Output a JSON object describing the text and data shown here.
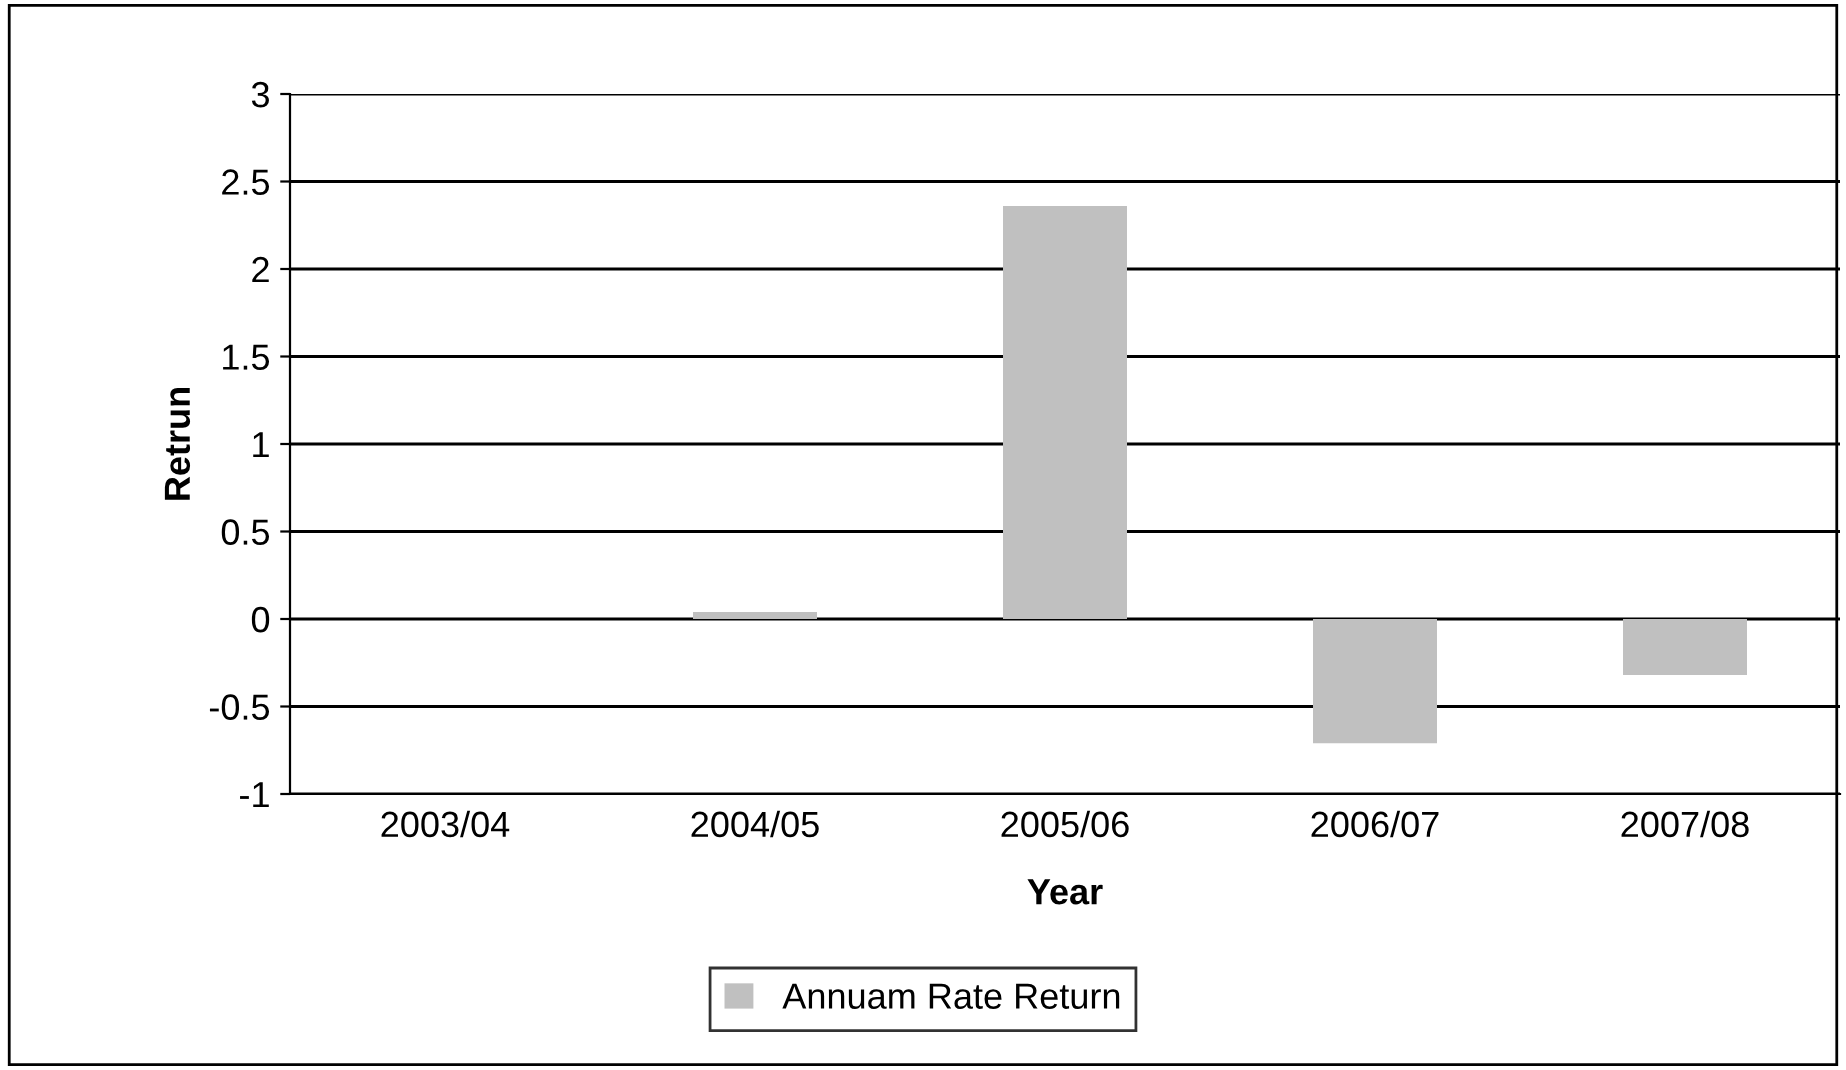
{
  "chart_data": {
    "type": "bar",
    "xlabel": "Year",
    "ylabel": "Retrun",
    "categories": [
      "2003/04",
      "2004/05",
      "2005/06",
      "2006/07",
      "2007/08"
    ],
    "series": [
      {
        "name": "Annuam Rate Return",
        "color": "#c0c0c0",
        "values": [
          0,
          0.04,
          2.36,
          -0.71,
          -0.32
        ]
      }
    ],
    "ylim": [
      -1,
      3
    ],
    "yticks": [
      -1,
      -0.5,
      0,
      0.5,
      1,
      1.5,
      2,
      2.5,
      3
    ],
    "grid": "y",
    "legend": "bottom"
  }
}
